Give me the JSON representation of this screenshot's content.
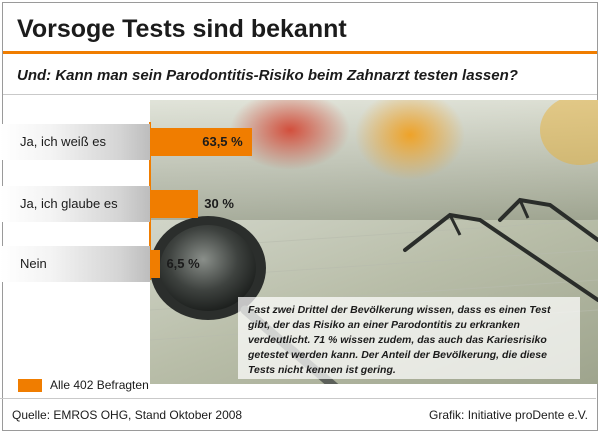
{
  "header": {
    "title": "Vorsoge Tests sind bekannt",
    "subtitle": "Und: Kann man sein Parodontitis-Risiko beim Zahnarzt testen lassen?"
  },
  "chart_data": {
    "type": "bar",
    "orientation": "horizontal",
    "categories": [
      "Ja, ich weiß es",
      "Ja, ich glaube es",
      "Nein"
    ],
    "series": [
      {
        "name": "Alle 402 Befragten",
        "values": [
          63.5,
          30,
          6.5
        ],
        "color": "#f07d00"
      }
    ],
    "value_labels": [
      "63,5 %",
      "30 %",
      "6,5 %"
    ],
    "xlim": [
      0,
      100
    ],
    "legend_position": "bottom-left",
    "grid": false
  },
  "annotation": {
    "text": "Fast zwei Drittel der Bevölkerung wissen, dass es einen Test gibt, der das Risiko an einer Parodontitis zu erkranken verdeutlicht. 71 % wissen zudem, das auch das Kariesrisiko getestet werden kann. Der Anteil der Bevölkerung, die diese Tests nicht kennen ist gering."
  },
  "legend": {
    "label": "Alle 402 Befragten"
  },
  "footer": {
    "source": "Quelle: EMROS OHG, Stand Oktober 2008",
    "credit": "Grafik: Initiative proDente e.V."
  },
  "colors": {
    "accent": "#f07d00",
    "text": "#1b1b1b"
  }
}
